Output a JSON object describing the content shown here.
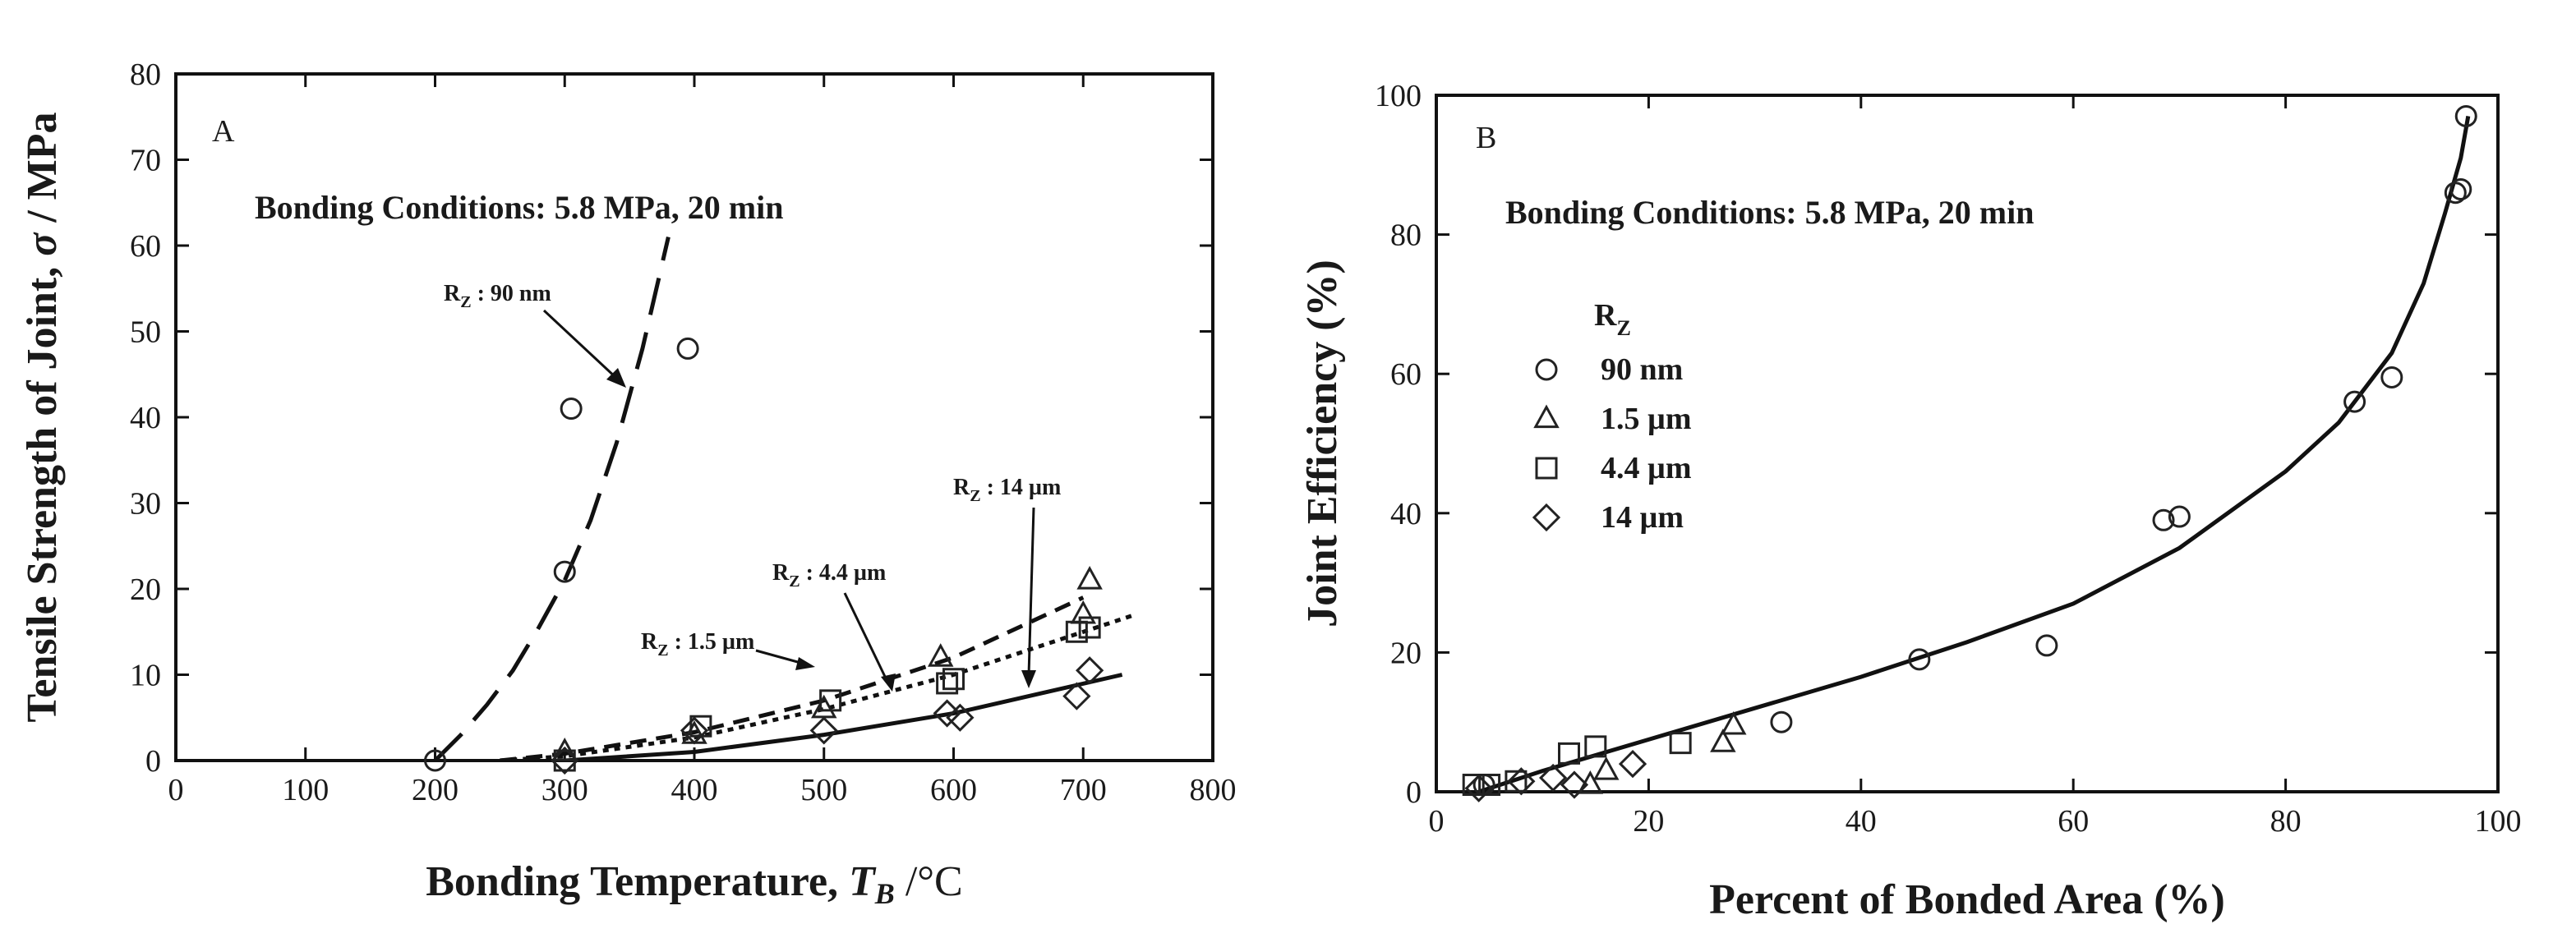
{
  "chart_data": [
    {
      "type": "scatter",
      "panel": "A",
      "xlabel": "Bonding Temperature, T_B /°C",
      "xlabel_parts": {
        "main": "Bonding Temperature, ",
        "symbol": "T",
        "sub": "B",
        "unit": " /°C"
      },
      "ylabel": "Tensile Strength of Joint, σ / MPa",
      "ylabel_parts": {
        "main": "Tensile Strength of Joint, ",
        "symbol": "σ",
        "unit": " / MPa"
      },
      "xlim": [
        0,
        800
      ],
      "ylim": [
        0,
        80
      ],
      "xticks": [
        0,
        100,
        200,
        300,
        400,
        500,
        600,
        700,
        800
      ],
      "yticks": [
        0,
        10,
        20,
        30,
        40,
        50,
        60,
        70,
        80
      ],
      "annotation": "Bonding Conditions: 5.8 MPa, 20 min",
      "series": [
        {
          "name": "90 nm",
          "label": "R_Z : 90 nm",
          "marker": "circle",
          "points": [
            [
              200,
              0
            ],
            [
              300,
              22
            ],
            [
              305,
              41
            ],
            [
              395,
              48
            ]
          ],
          "fit": {
            "style": "longdash",
            "x": [
              200,
              220,
              240,
              260,
              280,
              300,
              320,
              340,
              360,
              380
            ],
            "y": [
              0,
              3,
              6.5,
              10.5,
              15.5,
              21,
              28,
              37,
              48,
              61
            ]
          }
        },
        {
          "name": "1.5 µm",
          "label": "R_Z : 1.5 µm",
          "marker": "triangle",
          "points": [
            [
              300,
              1
            ],
            [
              400,
              3
            ],
            [
              500,
              6
            ],
            [
              590,
              12
            ],
            [
              700,
              17
            ],
            [
              705,
              21
            ]
          ],
          "fit": {
            "style": "dash",
            "x": [
              250,
              300,
              400,
              500,
              600,
              700
            ],
            "y": [
              0,
              0.8,
              3.3,
              7,
              12,
              19
            ]
          }
        },
        {
          "name": "4.4 µm",
          "label": "R_Z : 4.4 µm",
          "marker": "square",
          "points": [
            [
              300,
              0
            ],
            [
              405,
              4
            ],
            [
              505,
              7
            ],
            [
              595,
              9
            ],
            [
              600,
              9.5
            ],
            [
              695,
              15
            ],
            [
              705,
              15.5
            ]
          ],
          "fit": {
            "style": "dot",
            "x": [
              250,
              300,
              400,
              500,
              600,
              740
            ],
            "y": [
              0,
              0.5,
              2.7,
              6,
              10,
              17
            ]
          }
        },
        {
          "name": "14 µm",
          "label": "R_Z : 14 µm",
          "marker": "diamond",
          "points": [
            [
              300,
              0
            ],
            [
              400,
              3.5
            ],
            [
              500,
              3.5
            ],
            [
              595,
              5.5
            ],
            [
              605,
              5
            ],
            [
              695,
              7.5
            ],
            [
              705,
              10.5
            ]
          ],
          "fit": {
            "style": "solid",
            "x": [
              300,
              400,
              500,
              600,
              730
            ],
            "y": [
              0,
              1,
              3,
              5.5,
              10
            ]
          }
        }
      ]
    },
    {
      "type": "scatter",
      "panel": "B",
      "xlabel": "Percent of Bonded Area (%)",
      "ylabel": "Joint Efficiency (%)",
      "xlim": [
        0,
        100
      ],
      "ylim": [
        0,
        100
      ],
      "xticks": [
        0,
        20,
        40,
        60,
        80,
        100
      ],
      "yticks": [
        0,
        20,
        40,
        60,
        80,
        100
      ],
      "annotation": "Bonding Conditions: 5.8 MPa, 20 min",
      "legend_title": "R_Z",
      "legend_position": "left",
      "series": [
        {
          "name": "90 nm",
          "marker": "circle",
          "points": [
            [
              4.5,
              1
            ],
            [
              32.5,
              10
            ],
            [
              45.5,
              19
            ],
            [
              57.5,
              21
            ],
            [
              68.5,
              39
            ],
            [
              70,
              39.5
            ],
            [
              86.5,
              56
            ],
            [
              90,
              59.5
            ],
            [
              96,
              86
            ],
            [
              96.5,
              86.5
            ],
            [
              97,
              97
            ]
          ]
        },
        {
          "name": "1.5 µm",
          "marker": "triangle",
          "points": [
            [
              14.5,
              1
            ],
            [
              16,
              3
            ],
            [
              27,
              7
            ],
            [
              28,
              9.5
            ]
          ]
        },
        {
          "name": "4.4 µm",
          "marker": "square",
          "points": [
            [
              3.5,
              1
            ],
            [
              5,
              1
            ],
            [
              7.5,
              1.5
            ],
            [
              12.5,
              5.5
            ],
            [
              15,
              6.5
            ],
            [
              23,
              7
            ]
          ]
        },
        {
          "name": "14 µm",
          "marker": "diamond",
          "points": [
            [
              4,
              0.5
            ],
            [
              8,
              1.5
            ],
            [
              11,
              2
            ],
            [
              13,
              1
            ],
            [
              18.5,
              4
            ]
          ]
        }
      ],
      "fit": {
        "style": "solid",
        "x": [
          4,
          10,
          20,
          30,
          40,
          50,
          60,
          70,
          80,
          85,
          90,
          93,
          95,
          96.5,
          97.2
        ],
        "y": [
          0,
          3,
          7.5,
          12,
          16.5,
          21.5,
          27,
          35,
          46,
          53,
          63,
          73,
          83,
          91,
          97
        ]
      }
    }
  ]
}
